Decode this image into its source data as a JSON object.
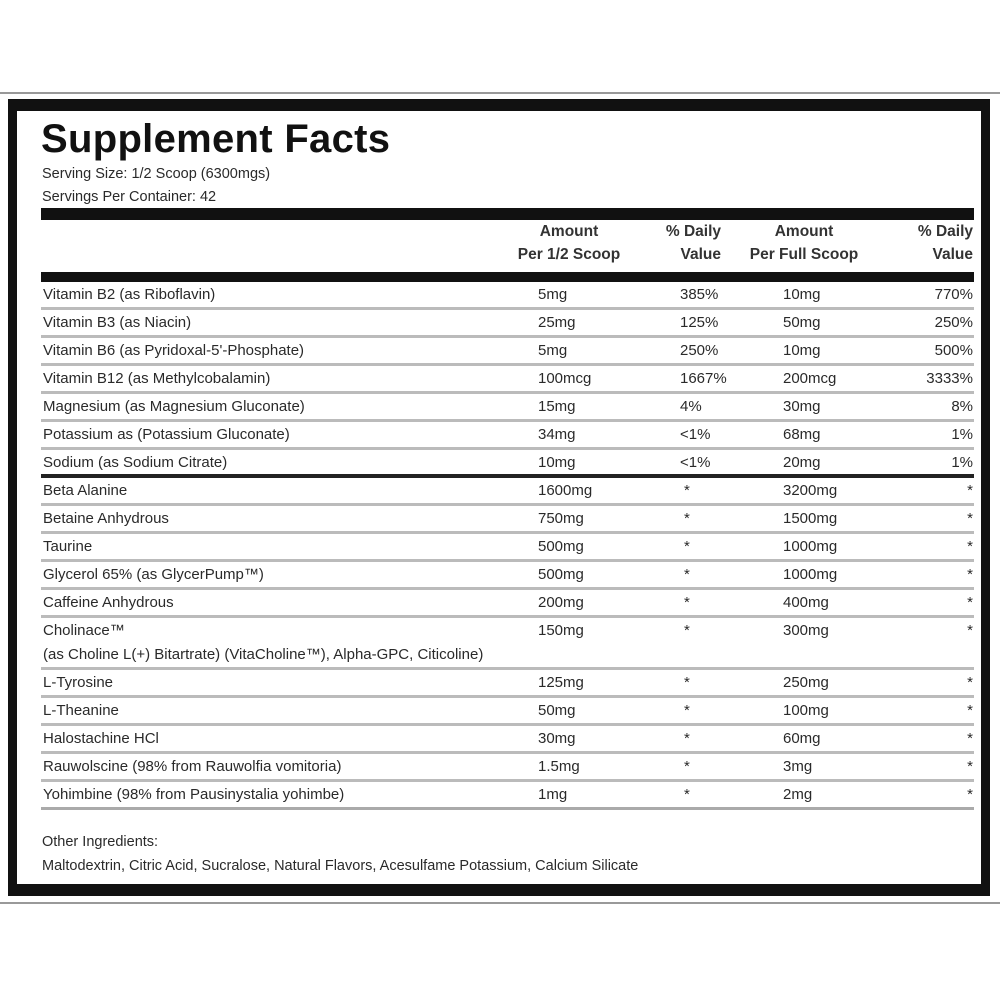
{
  "title": "Supplement Facts",
  "serving_size": "Serving Size: 1/2 Scoop (6300mgs)",
  "servings_per_container": "Servings Per Container: 42",
  "headers": {
    "amount_half": [
      "Amount",
      "Per 1/2 Scoop"
    ],
    "dv_half": [
      "% Daily",
      "Value"
    ],
    "amount_full": [
      "Amount",
      "Per Full Scoop"
    ],
    "dv_full": [
      "% Daily",
      "Value"
    ]
  },
  "vitamins": [
    {
      "name": "Vitamin B2 (as Riboflavin)",
      "half": "5mg",
      "dv_half": "385%",
      "full": "10mg",
      "dv_full": "770%"
    },
    {
      "name": "Vitamin B3 (as Niacin)",
      "half": "25mg",
      "dv_half": "125%",
      "full": "50mg",
      "dv_full": "250%"
    },
    {
      "name": "Vitamin B6 (as Pyridoxal-5'-Phosphate)",
      "half": "5mg",
      "dv_half": "250%",
      "full": "10mg",
      "dv_full": "500%"
    },
    {
      "name": "Vitamin B12 (as Methylcobalamin)",
      "half": "100mcg",
      "dv_half": "1667%",
      "full": "200mcg",
      "dv_full": "3333%"
    },
    {
      "name": "Magnesium (as Magnesium Gluconate)",
      "half": "15mg",
      "dv_half": "4%",
      "full": "30mg",
      "dv_full": "8%"
    },
    {
      "name": "Potassium  as (Potassium Gluconate)",
      "half": "34mg",
      "dv_half": "<1%",
      "full": "68mg",
      "dv_full": "1%"
    },
    {
      "name": "Sodium (as Sodium Citrate)",
      "half": "10mg",
      "dv_half": "<1%",
      "full": "20mg",
      "dv_full": "1%"
    }
  ],
  "ingredients": [
    {
      "name": "Beta Alanine",
      "half": "1600mg",
      "dv_half": "*",
      "full": "3200mg",
      "dv_full": "*"
    },
    {
      "name": "Betaine Anhydrous",
      "half": "750mg",
      "dv_half": "*",
      "full": "1500mg",
      "dv_full": "*"
    },
    {
      "name": "Taurine",
      "half": "500mg",
      "dv_half": "*",
      "full": "1000mg",
      "dv_full": "*"
    },
    {
      "name": "Glycerol 65% (as GlycerPump™)",
      "half": "500mg",
      "dv_half": "*",
      "full": "1000mg",
      "dv_full": "*"
    },
    {
      "name": "Caffeine Anhydrous",
      "half": "200mg",
      "dv_half": "*",
      "full": "400mg",
      "dv_full": "*"
    },
    {
      "name": "Cholinace™",
      "sub": "(as Choline L(+) Bitartrate) (VitaCholine™), Alpha-GPC, Citicoline)",
      "half": "150mg",
      "dv_half": "*",
      "full": "300mg",
      "dv_full": "*"
    },
    {
      "name": "L-Tyrosine",
      "half": "125mg",
      "dv_half": "*",
      "full": "250mg",
      "dv_full": "*"
    },
    {
      "name": "L-Theanine",
      "half": "50mg",
      "dv_half": "*",
      "full": "100mg",
      "dv_full": "*"
    },
    {
      "name": "Halostachine HCl",
      "half": "30mg",
      "dv_half": "*",
      "full": "60mg",
      "dv_full": "*"
    },
    {
      "name": "Rauwolscine (98% from Rauwolfia vomitoria)",
      "half": "1.5mg",
      "dv_half": "*",
      "full": "3mg",
      "dv_full": "*"
    },
    {
      "name": "Yohimbine (98% from Pausinystalia yohimbe)",
      "half": "1mg",
      "dv_half": "*",
      "full": "2mg",
      "dv_full": "*"
    }
  ],
  "other_ingredients": {
    "label": "Other Ingredients:",
    "text": "Maltodextrin, Citric Acid, Sucralose, Natural Flavors, Acesulfame Potassium, Calcium Silicate"
  }
}
